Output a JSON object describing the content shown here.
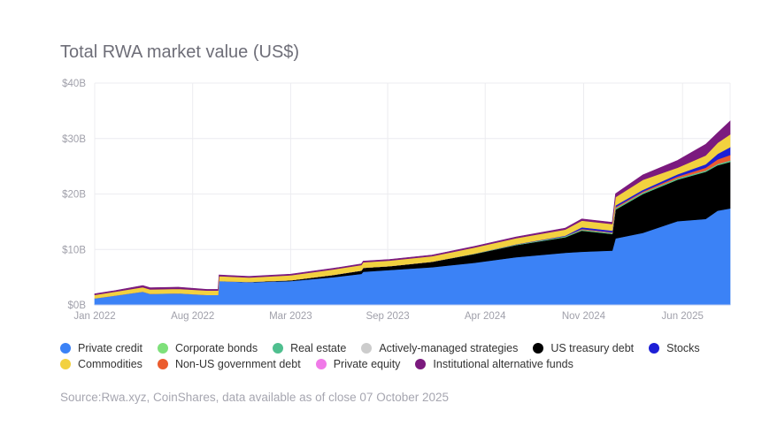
{
  "chart_data": {
    "type": "area",
    "stacked": true,
    "title": "Total RWA market value (US$)",
    "xlabel": "",
    "ylabel": "",
    "ylim": [
      0,
      40
    ],
    "y_unit": "US$ billions",
    "y_ticks": [
      {
        "value": 0,
        "label": "$0B"
      },
      {
        "value": 10,
        "label": "$10B"
      },
      {
        "value": 20,
        "label": "$20B"
      },
      {
        "value": 30,
        "label": "$30B"
      },
      {
        "value": 40,
        "label": "$40B"
      }
    ],
    "x_range": [
      "2022-01-01",
      "2025-10-07"
    ],
    "x_ticks": [
      {
        "date": "2022-01-01",
        "label": "Jan 2022"
      },
      {
        "date": "2022-08-01",
        "label": "Aug 2022"
      },
      {
        "date": "2023-03-01",
        "label": "Mar 2023"
      },
      {
        "date": "2023-09-27",
        "label": "Sep 2023"
      },
      {
        "date": "2024-04-25",
        "label": "Apr 2024"
      },
      {
        "date": "2024-11-24",
        "label": "Nov 2024"
      },
      {
        "date": "2025-06-26",
        "label": "Jun 2025"
      }
    ],
    "grid": true,
    "legend_position": "bottom",
    "x": [
      "2022-01-01",
      "2022-02-15",
      "2022-04-15",
      "2022-05-01",
      "2022-07-01",
      "2022-09-01",
      "2022-09-25",
      "2022-09-27",
      "2022-12-01",
      "2023-03-01",
      "2023-06-01",
      "2023-08-01",
      "2023-08-05",
      "2023-10-01",
      "2024-01-01",
      "2024-04-01",
      "2024-07-01",
      "2024-10-15",
      "2024-11-20",
      "2025-01-25",
      "2025-02-01",
      "2025-04-01",
      "2025-06-15",
      "2025-08-15",
      "2025-09-10",
      "2025-10-07"
    ],
    "series": [
      {
        "name": "Private credit",
        "color": "#3b82f6",
        "values": [
          1.2,
          1.7,
          2.4,
          2.0,
          2.1,
          1.8,
          1.8,
          4.3,
          4.1,
          4.3,
          5.0,
          5.6,
          6.0,
          6.3,
          6.8,
          7.6,
          8.6,
          9.4,
          9.6,
          9.8,
          12.0,
          13.0,
          15.1,
          15.5,
          17.0,
          17.4
        ]
      },
      {
        "name": "US treasury debt",
        "color": "#000000",
        "values": [
          0,
          0,
          0,
          0,
          0,
          0,
          0,
          0,
          0.05,
          0.15,
          0.4,
          0.6,
          0.7,
          0.7,
          1.0,
          1.6,
          2.2,
          2.8,
          3.8,
          3.0,
          5.2,
          7.0,
          7.5,
          8.5,
          8.2,
          8.4
        ]
      },
      {
        "name": "Corporate bonds",
        "color": "#7ee07a",
        "values": [
          0,
          0,
          0,
          0,
          0,
          0,
          0,
          0,
          0,
          0,
          0,
          0,
          0,
          0,
          0,
          0,
          0,
          0.05,
          0.05,
          0.05,
          0.05,
          0.05,
          0.05,
          0.05,
          0.05,
          0.05
        ]
      },
      {
        "name": "Real estate",
        "color": "#4fbf8f",
        "values": [
          0,
          0,
          0,
          0,
          0,
          0,
          0,
          0,
          0,
          0,
          0,
          0,
          0,
          0,
          0,
          0.05,
          0.1,
          0.15,
          0.15,
          0.15,
          0.2,
          0.2,
          0.2,
          0.2,
          0.2,
          0.2
        ]
      },
      {
        "name": "Actively-managed strategies",
        "color": "#cccccc",
        "values": [
          0,
          0,
          0,
          0,
          0,
          0,
          0,
          0,
          0,
          0,
          0,
          0,
          0,
          0,
          0,
          0,
          0,
          0,
          0,
          0,
          0,
          0,
          0,
          0,
          0,
          0
        ]
      },
      {
        "name": "Private equity",
        "color": "#f07ae8",
        "values": [
          0,
          0,
          0,
          0,
          0,
          0,
          0,
          0,
          0,
          0,
          0,
          0,
          0,
          0,
          0,
          0,
          0,
          0,
          0,
          0,
          0,
          0,
          0,
          0,
          0,
          0
        ]
      },
      {
        "name": "Non-US government debt",
        "color": "#eb5c2e",
        "values": [
          0,
          0,
          0,
          0,
          0,
          0,
          0,
          0,
          0,
          0,
          0,
          0,
          0,
          0,
          0,
          0,
          0,
          0,
          0.1,
          0.1,
          0.2,
          0.2,
          0.3,
          0.5,
          0.8,
          1.0
        ]
      },
      {
        "name": "Stocks",
        "color": "#1d1fd6",
        "values": [
          0,
          0,
          0,
          0,
          0,
          0,
          0,
          0,
          0,
          0,
          0,
          0,
          0,
          0,
          0,
          0,
          0.05,
          0.1,
          0.3,
          0.3,
          0.3,
          0.3,
          0.4,
          0.6,
          1.0,
          1.4
        ]
      },
      {
        "name": "Commodities",
        "color": "#f2d13f",
        "values": [
          0.6,
          0.7,
          0.8,
          0.8,
          0.8,
          0.8,
          0.8,
          0.9,
          0.8,
          0.9,
          1.0,
          1.0,
          1.0,
          1.0,
          1.0,
          1.1,
          1.1,
          1.1,
          1.2,
          1.2,
          1.5,
          1.8,
          1.2,
          1.6,
          2.0,
          2.3
        ]
      },
      {
        "name": "Institutional alternative funds",
        "color": "#7b1a7e",
        "values": [
          0.2,
          0.2,
          0.3,
          0.3,
          0.3,
          0.2,
          0.2,
          0.2,
          0.2,
          0.2,
          0.2,
          0.2,
          0.2,
          0.2,
          0.2,
          0.2,
          0.2,
          0.25,
          0.3,
          0.3,
          0.6,
          0.9,
          1.3,
          2.0,
          1.8,
          2.4
        ]
      }
    ],
    "legend": [
      [
        {
          "name": "Private credit",
          "color": "#3b82f6"
        },
        {
          "name": "Corporate bonds",
          "color": "#7ee07a"
        },
        {
          "name": "Real estate",
          "color": "#4fbf8f"
        },
        {
          "name": "Actively-managed strategies",
          "color": "#cccccc"
        },
        {
          "name": "US treasury debt",
          "color": "#000000"
        },
        {
          "name": "Stocks",
          "color": "#1d1fd6"
        }
      ],
      [
        {
          "name": "Commodities",
          "color": "#f2d13f"
        },
        {
          "name": "Non-US government debt",
          "color": "#eb5c2e"
        },
        {
          "name": "Private equity",
          "color": "#f07ae8"
        },
        {
          "name": "Institutional alternative funds",
          "color": "#7b1a7e"
        }
      ]
    ],
    "source": "Source:Rwa.xyz, CoinShares, data available as of close 07 October 2025"
  }
}
